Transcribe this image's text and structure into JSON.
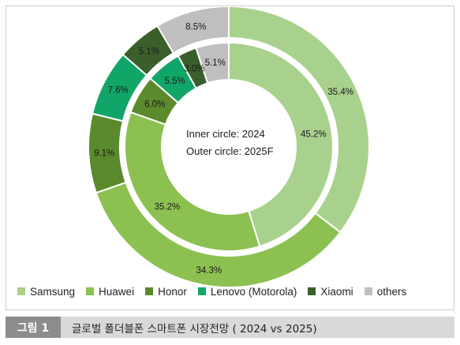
{
  "chart_data": {
    "type": "donut",
    "categories": [
      "Samsung",
      "Huawei",
      "Honor",
      "Lenovo (Motorola)",
      "Xiaomi",
      "others"
    ],
    "colors": [
      "#a9d18e",
      "#8cc152",
      "#5b8a2d",
      "#11a667",
      "#3a5f2b",
      "#bfbfbf"
    ],
    "series": [
      {
        "ring": "inner",
        "values": [
          45.2,
          35.2,
          6.0,
          5.5,
          3.0,
          5.1
        ],
        "labels": [
          "45.2%",
          "35.2%",
          "6.0%",
          "5.5%",
          "3.0%",
          "5.1%"
        ]
      },
      {
        "ring": "outer",
        "values": [
          35.4,
          34.3,
          9.1,
          7.6,
          5.1,
          8.5
        ],
        "labels": [
          "35.4%",
          "34.3%",
          "9.1%",
          "7.6%",
          "5.1%",
          "8.5%"
        ]
      }
    ],
    "center_text": [
      "Inner circle: 2024",
      "Outer circle: 2025F"
    ],
    "legend_position": "bottom"
  },
  "caption": {
    "label": "그림 1",
    "text": "글로벌 폴더블폰 스마트폰 시장전망 ( 2024 vs 2025)"
  }
}
